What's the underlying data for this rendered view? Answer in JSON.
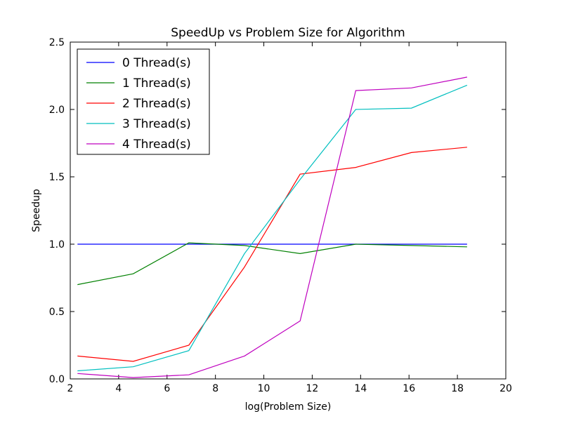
{
  "chart_data": {
    "type": "line",
    "title": "SpeedUp vs Problem Size for Algorithm",
    "xlabel": "log(Problem Size)",
    "ylabel": "Speedup",
    "xlim": [
      2,
      20
    ],
    "ylim": [
      0.0,
      2.5
    ],
    "xticks": [
      2,
      4,
      6,
      8,
      10,
      12,
      14,
      16,
      18,
      20
    ],
    "yticks": [
      0.0,
      0.5,
      1.0,
      1.5,
      2.0,
      2.5
    ],
    "ytick_labels": [
      "0.0",
      "0.5",
      "1.0",
      "1.5",
      "2.0",
      "2.5"
    ],
    "grid": false,
    "legend_position": "top-left",
    "x": [
      2.3,
      4.6,
      6.9,
      9.2,
      11.5,
      13.8,
      16.1,
      18.4
    ],
    "series": [
      {
        "name": "0 Thread(s)",
        "color": "#0000ff",
        "values": [
          1.0,
          1.0,
          1.0,
          1.0,
          1.0,
          1.0,
          1.0,
          1.0
        ]
      },
      {
        "name": "1 Thread(s)",
        "color": "#008000",
        "values": [
          0.7,
          0.78,
          1.01,
          0.99,
          0.93,
          1.0,
          0.99,
          0.98
        ]
      },
      {
        "name": "2 Thread(s)",
        "color": "#ff0000",
        "values": [
          0.17,
          0.13,
          0.25,
          0.83,
          1.52,
          1.57,
          1.68,
          1.72
        ]
      },
      {
        "name": "3 Thread(s)",
        "color": "#00bfbf",
        "values": [
          0.06,
          0.09,
          0.21,
          0.93,
          1.48,
          2.0,
          2.01,
          2.18
        ]
      },
      {
        "name": "4 Thread(s)",
        "color": "#bf00bf",
        "values": [
          0.04,
          0.01,
          0.03,
          0.17,
          0.43,
          2.14,
          2.16,
          2.24
        ]
      }
    ]
  }
}
